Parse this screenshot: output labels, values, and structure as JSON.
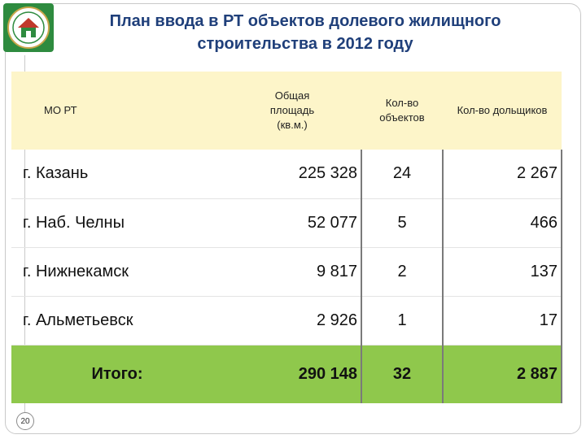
{
  "header": {
    "title_line1": "План ввода в РТ объектов долевого жилищного",
    "title_line2": "строительства в 2012 году"
  },
  "logo": {
    "icon": "house-emblem-icon",
    "color": "#2e8b3f"
  },
  "table": {
    "columns": [
      "МО РТ",
      "Общая площадь (кв.м.)",
      "Кол-во объектов",
      "Кол-во дольщиков"
    ],
    "header_lines": {
      "area": [
        "Общая",
        "площадь",
        "(кв.м.)"
      ],
      "objects": [
        "Кол-во",
        "объектов"
      ]
    },
    "rows": [
      {
        "name": "г. Казань",
        "area": "225 328",
        "objects": "24",
        "shareholders": "2 267"
      },
      {
        "name": "г. Наб. Челны",
        "area": "52 077",
        "objects": "5",
        "shareholders": "466"
      },
      {
        "name": "г. Нижнекамск",
        "area": "9 817",
        "objects": "2",
        "shareholders": "137"
      },
      {
        "name": "г. Альметьевск",
        "area": "2 926",
        "objects": "1",
        "shareholders": "17"
      }
    ],
    "total": {
      "name": "Итого:",
      "area": "290 148",
      "objects": "32",
      "shareholders": "2 887"
    }
  },
  "page_number": "20",
  "colors": {
    "header_bg": "#fdf5c9",
    "total_bg": "#8fc84c",
    "title": "#1f3f7a"
  }
}
